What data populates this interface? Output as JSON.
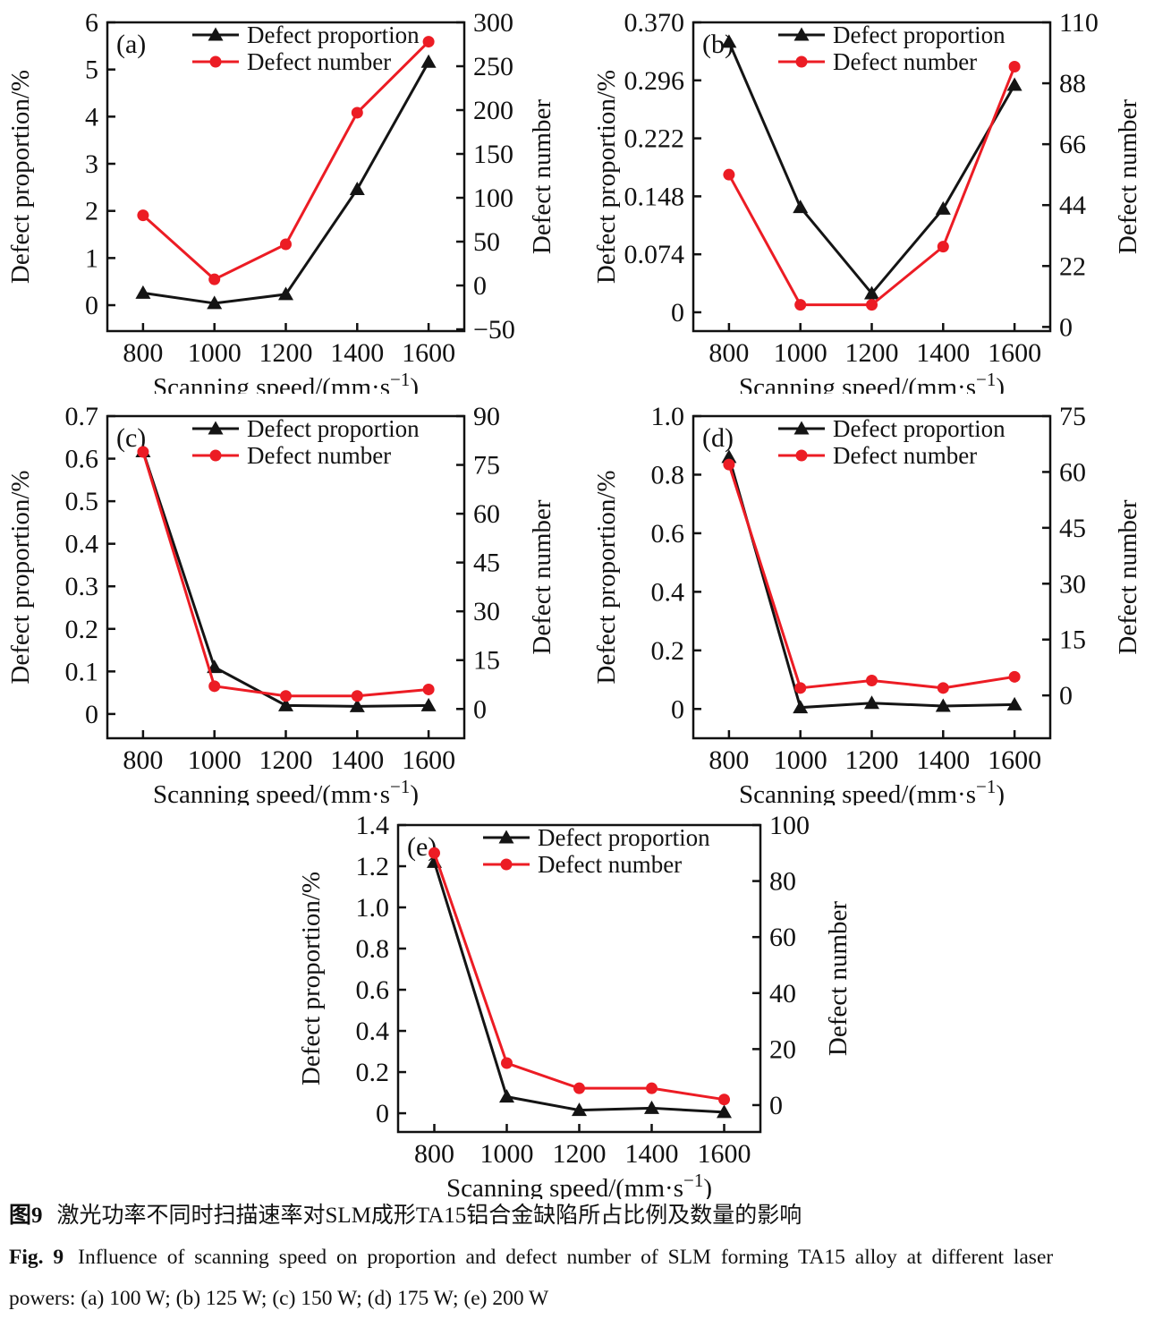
{
  "figure": {
    "caption": {
      "zh_label": "图9",
      "zh_text": "激光功率不同时扫描速率对SLM成形TA15铝合金缺陷所占比例及数量的影响",
      "en_label": "Fig. 9",
      "en_text1": "Influence of scanning speed on proportion and defect number of SLM forming TA15 alloy at different laser",
      "en_text2": "powers: (a) 100 W; (b) 125 W; (c) 150 W; (d) 175 W; (e) 200 W"
    },
    "colors": {
      "proportion_series": "#141414",
      "number_series": "#ec1c24",
      "axis": "#111111"
    }
  },
  "chart_data": [
    {
      "id": "a",
      "type": "line",
      "panel_label": "(a)",
      "laser_power": "100 W",
      "x": [
        800,
        1000,
        1200,
        1400,
        1600
      ],
      "x_ticks": [
        "800",
        "1000",
        "1200",
        "1400",
        "1600"
      ],
      "x_range": [
        700,
        1700
      ],
      "xlabel": {
        "pre": "Scanning speed/(mm·s",
        "sup": "−1",
        "post": ")"
      },
      "left_axis": {
        "label": "Defect proportion/%",
        "ticks": [
          "0",
          "1",
          "2",
          "3",
          "4",
          "5",
          "6"
        ],
        "range": [
          -0.55,
          6
        ]
      },
      "right_axis": {
        "label": "Defect number",
        "ticks": [
          "−50",
          "0",
          "50",
          "100",
          "150",
          "200",
          "250",
          "300"
        ],
        "range": [
          -52,
          300
        ]
      },
      "legend": [
        "Defect proportion",
        "Defect number"
      ],
      "series": [
        {
          "name": "Defect proportion",
          "axis": "left",
          "color": "#141414",
          "marker": "triangle",
          "values": [
            0.26,
            0.04,
            0.23,
            2.46,
            5.16
          ]
        },
        {
          "name": "Defect number",
          "axis": "right",
          "color": "#ec1c24",
          "marker": "circle",
          "values": [
            80,
            7,
            47,
            197,
            278
          ]
        }
      ]
    },
    {
      "id": "b",
      "type": "line",
      "panel_label": "(b)",
      "laser_power": "125 W",
      "x": [
        800,
        1000,
        1200,
        1400,
        1600
      ],
      "x_ticks": [
        "800",
        "1000",
        "1200",
        "1400",
        "1600"
      ],
      "x_range": [
        700,
        1700
      ],
      "xlabel": {
        "pre": "Scanning speed/(mm·s",
        "sup": "−1",
        "post": ")"
      },
      "left_axis": {
        "label": "Defect proportion/%",
        "ticks": [
          "0",
          "0.074",
          "0.148",
          "0.222",
          "0.296",
          "0.370"
        ],
        "range": [
          -0.024,
          0.37
        ]
      },
      "right_axis": {
        "label": "Defect number",
        "ticks": [
          "0",
          "22",
          "44",
          "66",
          "88",
          "110"
        ],
        "range": [
          -1.5,
          110
        ]
      },
      "legend": [
        "Defect proportion",
        "Defect number"
      ],
      "series": [
        {
          "name": "Defect proportion",
          "axis": "left",
          "color": "#141414",
          "marker": "triangle",
          "values": [
            0.345,
            0.134,
            0.024,
            0.132,
            0.29
          ]
        },
        {
          "name": "Defect number",
          "axis": "right",
          "color": "#ec1c24",
          "marker": "circle",
          "values": [
            55,
            8,
            8,
            29,
            94
          ]
        }
      ]
    },
    {
      "id": "c",
      "type": "line",
      "panel_label": "(c)",
      "laser_power": "150 W",
      "x": [
        800,
        1000,
        1200,
        1400,
        1600
      ],
      "x_ticks": [
        "800",
        "1000",
        "1200",
        "1400",
        "1600"
      ],
      "x_range": [
        700,
        1700
      ],
      "xlabel": {
        "pre": "Scanning speed/(mm·s",
        "sup": "−1",
        "post": ")"
      },
      "left_axis": {
        "label": "Defect proportion/%",
        "ticks": [
          "0",
          "0.1",
          "0.2",
          "0.3",
          "0.4",
          "0.5",
          "0.6",
          "0.7"
        ],
        "range": [
          -0.057,
          0.7
        ]
      },
      "right_axis": {
        "label": "Defect number",
        "ticks": [
          "0",
          "15",
          "30",
          "45",
          "60",
          "75",
          "90"
        ],
        "range": [
          -9,
          90
        ]
      },
      "legend": [
        "Defect proportion",
        "Defect number"
      ],
      "series": [
        {
          "name": "Defect proportion",
          "axis": "left",
          "color": "#141414",
          "marker": "triangle",
          "values": [
            0.617,
            0.11,
            0.02,
            0.018,
            0.02
          ]
        },
        {
          "name": "Defect number",
          "axis": "right",
          "color": "#ec1c24",
          "marker": "circle",
          "values": [
            79,
            7,
            4,
            4,
            6
          ]
        }
      ]
    },
    {
      "id": "d",
      "type": "line",
      "panel_label": "(d)",
      "laser_power": "175 W",
      "x": [
        800,
        1000,
        1200,
        1400,
        1600
      ],
      "x_ticks": [
        "800",
        "1000",
        "1200",
        "1400",
        "1600"
      ],
      "x_range": [
        700,
        1700
      ],
      "xlabel": {
        "pre": "Scanning speed/(mm·s",
        "sup": "−1",
        "post": ")"
      },
      "left_axis": {
        "label": "Defect proportion/%",
        "ticks": [
          "0",
          "0.2",
          "0.4",
          "0.6",
          "0.8",
          "1.0"
        ],
        "range": [
          -0.1,
          1.0
        ]
      },
      "right_axis": {
        "label": "Defect number",
        "ticks": [
          "0",
          "15",
          "30",
          "45",
          "60",
          "75"
        ],
        "range": [
          -11.5,
          75
        ]
      },
      "legend": [
        "Defect proportion",
        "Defect number"
      ],
      "series": [
        {
          "name": "Defect proportion",
          "axis": "left",
          "color": "#141414",
          "marker": "triangle",
          "values": [
            0.86,
            0.005,
            0.02,
            0.01,
            0.015
          ]
        },
        {
          "name": "Defect number",
          "axis": "right",
          "color": "#ec1c24",
          "marker": "circle",
          "values": [
            62,
            2,
            4,
            2,
            5
          ]
        }
      ]
    },
    {
      "id": "e",
      "type": "line",
      "panel_label": "(e)",
      "laser_power": "200 W",
      "x": [
        800,
        1000,
        1200,
        1400,
        1600
      ],
      "x_ticks": [
        "800",
        "1000",
        "1200",
        "1400",
        "1600"
      ],
      "x_range": [
        700,
        1700
      ],
      "xlabel": {
        "pre": "Scanning speed/(mm·s",
        "sup": "−1",
        "post": ")"
      },
      "left_axis": {
        "label": "Defect proportion/%",
        "ticks": [
          "0",
          "0.2",
          "0.4",
          "0.6",
          "0.8",
          "1.0",
          "1.2",
          "1.4"
        ],
        "range": [
          -0.091,
          1.4
        ]
      },
      "right_axis": {
        "label": "Defect number",
        "ticks": [
          "0",
          "20",
          "40",
          "60",
          "80",
          "100"
        ],
        "range": [
          -9.6,
          100
        ]
      },
      "legend": [
        "Defect proportion",
        "Defect number"
      ],
      "series": [
        {
          "name": "Defect proportion",
          "axis": "left",
          "color": "#141414",
          "marker": "triangle",
          "values": [
            1.22,
            0.08,
            0.015,
            0.025,
            0.005
          ]
        },
        {
          "name": "Defect number",
          "axis": "right",
          "color": "#ec1c24",
          "marker": "circle",
          "values": [
            90,
            15,
            6,
            6,
            2
          ]
        }
      ]
    }
  ]
}
